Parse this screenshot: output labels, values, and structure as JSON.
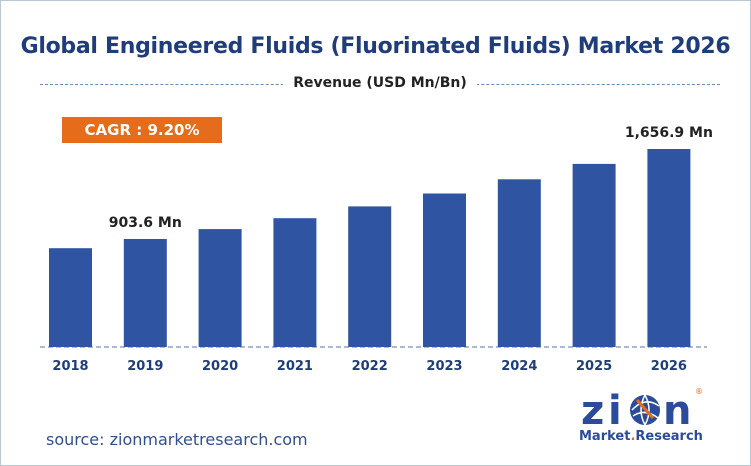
{
  "chart_data": {
    "type": "bar",
    "title": "Global Engineered Fluids (Fluorinated Fluids) Market 2026",
    "subtitle": "Revenue (USD Mn/Bn)",
    "categories": [
      "2018",
      "2019",
      "2020",
      "2021",
      "2022",
      "2023",
      "2024",
      "2025",
      "2026"
    ],
    "values": [
      826.7,
      903.6,
      986.7,
      1077.5,
      1176.6,
      1284.8,
      1403.0,
      1532.0,
      1656.9
    ],
    "data_labels": {
      "1": "903.6 Mn",
      "8": "1,656.9 Mn"
    },
    "xlabel": "",
    "ylabel": "",
    "ylim": [
      0,
      1860
    ],
    "grid": false,
    "bar_color": "#2f54a1",
    "baseline_color": "#8ea2c5"
  },
  "cagr": {
    "label": "CAGR : 9.20%",
    "color": "#e46c1a"
  },
  "source": "source: zionmarketresearch.com",
  "logo": {
    "word": "zion",
    "tagline": "Market Research",
    "mark": "®"
  }
}
